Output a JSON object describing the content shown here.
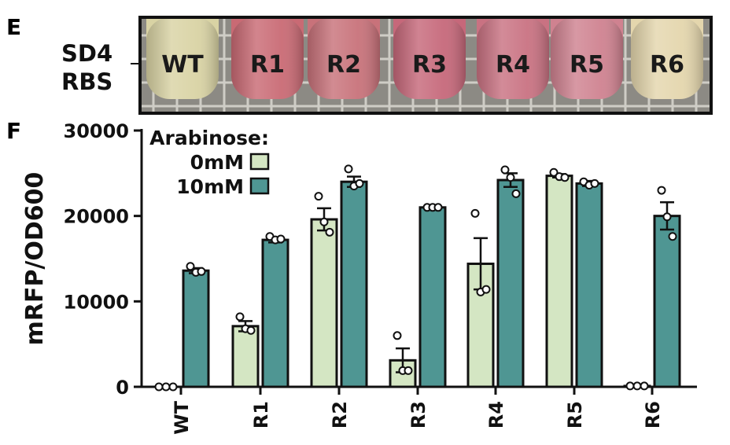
{
  "panel_e": {
    "letter": "E",
    "row_label_line1": "SD4",
    "row_label_line2": "RBS",
    "tubes": [
      {
        "label": "WT",
        "color": "#d9d3a4"
      },
      {
        "label": "R1",
        "color": "#c96a74"
      },
      {
        "label": "R2",
        "color": "#c8727a"
      },
      {
        "label": "R3",
        "color": "#c6687a"
      },
      {
        "label": "R4",
        "color": "#c97282"
      },
      {
        "label": "R5",
        "color": "#cf8290"
      },
      {
        "label": "R6",
        "color": "#e4d6ad"
      }
    ]
  },
  "panel_f": {
    "letter": "F"
  },
  "chart_data": {
    "type": "bar",
    "categories": [
      "WT",
      "R1",
      "R2",
      "R3",
      "R4",
      "R5",
      "R6"
    ],
    "ylabel": "mRFP/OD600",
    "xlabel": "",
    "ylim": [
      0,
      30000
    ],
    "yticks": [
      0,
      10000,
      20000,
      30000
    ],
    "ytick_labels": [
      "0",
      "10000",
      "20000",
      "30000"
    ],
    "legend_title": "Arabinose:",
    "legend_position": "top-left",
    "series": [
      {
        "name": "0mM",
        "color": "#d4e6c3",
        "values": [
          0,
          7100,
          19600,
          3100,
          14400,
          24700,
          100
        ],
        "errors": [
          0,
          600,
          1300,
          1400,
          3000,
          200,
          60
        ],
        "points": [
          [
            0,
            0,
            0
          ],
          [
            8200,
            6800,
            6600
          ],
          [
            22300,
            19300,
            18100
          ],
          [
            6000,
            1900,
            1900
          ],
          [
            20300,
            11100,
            11400
          ],
          [
            25100,
            24600,
            24500
          ],
          [
            100,
            100,
            100
          ]
        ]
      },
      {
        "name": "10mM",
        "color": "#4f9693",
        "values": [
          13600,
          17200,
          24000,
          21000,
          24200,
          23800,
          20000
        ],
        "errors": [
          300,
          300,
          600,
          100,
          800,
          300,
          1600
        ],
        "points": [
          [
            14100,
            13400,
            13500
          ],
          [
            17600,
            17200,
            17300
          ],
          [
            25500,
            23500,
            23800
          ],
          [
            21000,
            21000,
            21000
          ],
          [
            25400,
            24500,
            22600
          ],
          [
            24000,
            23600,
            23800
          ],
          [
            23000,
            19900,
            17600
          ]
        ]
      }
    ]
  }
}
